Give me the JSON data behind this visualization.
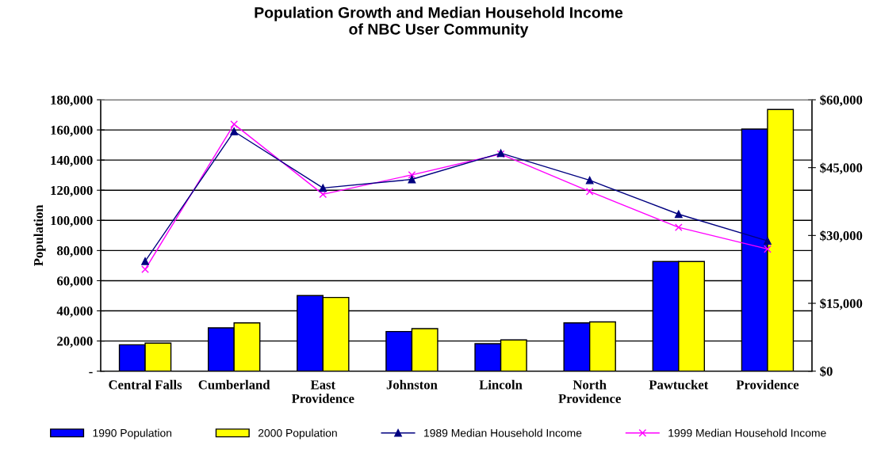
{
  "chart_data": {
    "type": "bar",
    "title": "Population Growth and Median Household Income\nof NBC User Community",
    "ylabel": "Population",
    "categories": [
      "Central Falls",
      "Cumberland",
      "East\nProvidence",
      "Johnston",
      "Lincoln",
      "North\nProvidence",
      "Pawtucket",
      "Providence"
    ],
    "series": [
      {
        "name": "1990 Population",
        "color": "#0000ff",
        "values": [
          17500,
          28700,
          50100,
          26300,
          18200,
          32000,
          72700,
          160600
        ]
      },
      {
        "name": "2000 Population",
        "color": "#ffff00",
        "values": [
          18600,
          32000,
          48900,
          28200,
          20700,
          32700,
          72700,
          173600
        ]
      },
      {
        "name": "1989 Median Household Income",
        "type": "line",
        "axis": "y2",
        "marker": "triangle",
        "color": "#000080",
        "values": [
          24300,
          53000,
          40500,
          42400,
          48200,
          42200,
          34700,
          28800
        ]
      },
      {
        "name": "1999 Median Household Income",
        "type": "line",
        "axis": "y2",
        "marker": "cross",
        "color": "#ff00ff",
        "values": [
          22500,
          54600,
          39100,
          43400,
          48000,
          39700,
          31800,
          27000
        ]
      }
    ],
    "ylim": [
      0,
      180000
    ],
    "yticks": [
      {
        "value": 0,
        "label": "-"
      },
      {
        "value": 20000,
        "label": "20,000"
      },
      {
        "value": 40000,
        "label": "40,000"
      },
      {
        "value": 60000,
        "label": "60,000"
      },
      {
        "value": 80000,
        "label": "80,000"
      },
      {
        "value": 100000,
        "label": "100,000"
      },
      {
        "value": 120000,
        "label": "120,000"
      },
      {
        "value": 140000,
        "label": "140,000"
      },
      {
        "value": 160000,
        "label": "160,000"
      },
      {
        "value": 180000,
        "label": "180,000"
      }
    ],
    "y2lim": [
      0,
      60000
    ],
    "y2ticks": [
      {
        "value": 0,
        "label": "$0"
      },
      {
        "value": 15000,
        "label": "$15,000"
      },
      {
        "value": 30000,
        "label": "$30,000"
      },
      {
        "value": 45000,
        "label": "$45,000"
      },
      {
        "value": 60000,
        "label": "$60,000"
      }
    ],
    "grid": "y",
    "legend": "bottom"
  }
}
